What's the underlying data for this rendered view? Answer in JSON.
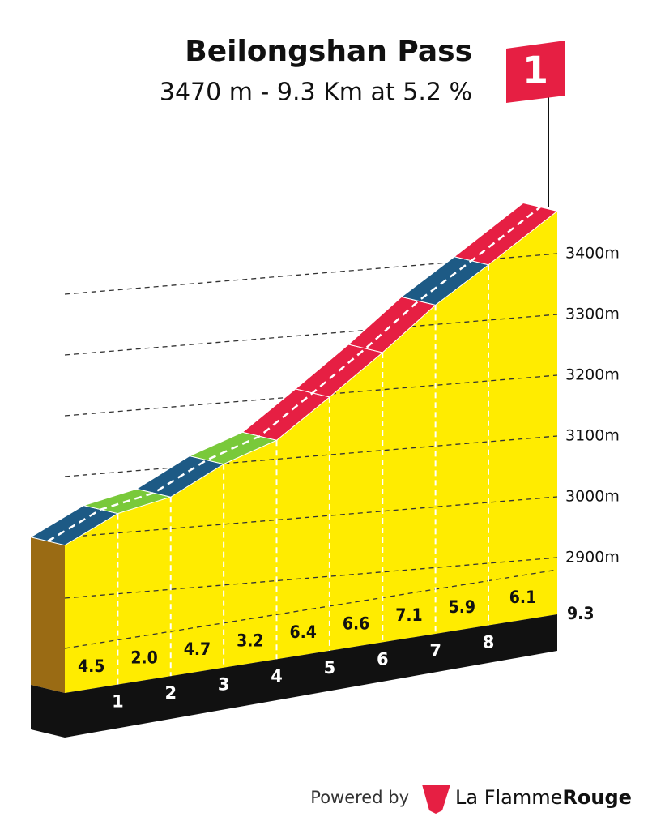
{
  "chart_data": {
    "type": "climb-profile",
    "title": "Beilongshan Pass",
    "subtitle": "3470 m - 9.3 Km at 5.2 %",
    "flag": "1",
    "x": [
      1,
      2,
      3,
      4,
      5,
      6,
      7,
      8,
      9.3
    ],
    "values": [
      4.5,
      2.0,
      4.7,
      3.2,
      6.4,
      6.6,
      7.1,
      5.9,
      6.1
    ],
    "value_labels": [
      "4.5",
      "2.0",
      "4.7",
      "3.2",
      "6.4",
      "6.6",
      "7.1",
      "5.9",
      "6.1"
    ],
    "colors": [
      "#1d5a85",
      "#79c93a",
      "#1d5a85",
      "#79c93a",
      "#e61f43",
      "#e61f43",
      "#e61f43",
      "#1d5a85",
      "#e61f43"
    ],
    "start_elevation": 2987,
    "elevations": [
      3032,
      3052,
      3099,
      3131,
      3195,
      3261,
      3332,
      3391,
      3470
    ],
    "xlim": [
      0,
      9.3
    ],
    "ylim": [
      2850,
      3480
    ],
    "yticks": [
      {
        "value": 2900,
        "label": "2900m"
      },
      {
        "value": 3000,
        "label": "3000m"
      },
      {
        "value": 3100,
        "label": "3100m"
      },
      {
        "value": 3200,
        "label": "3200m"
      },
      {
        "value": 3300,
        "label": "3300m"
      },
      {
        "value": 3400,
        "label": "3400m"
      }
    ],
    "grid": true,
    "footer": {
      "powered": "Powered by",
      "brand": "La Flamme",
      "brand_bold": "Rouge"
    }
  }
}
